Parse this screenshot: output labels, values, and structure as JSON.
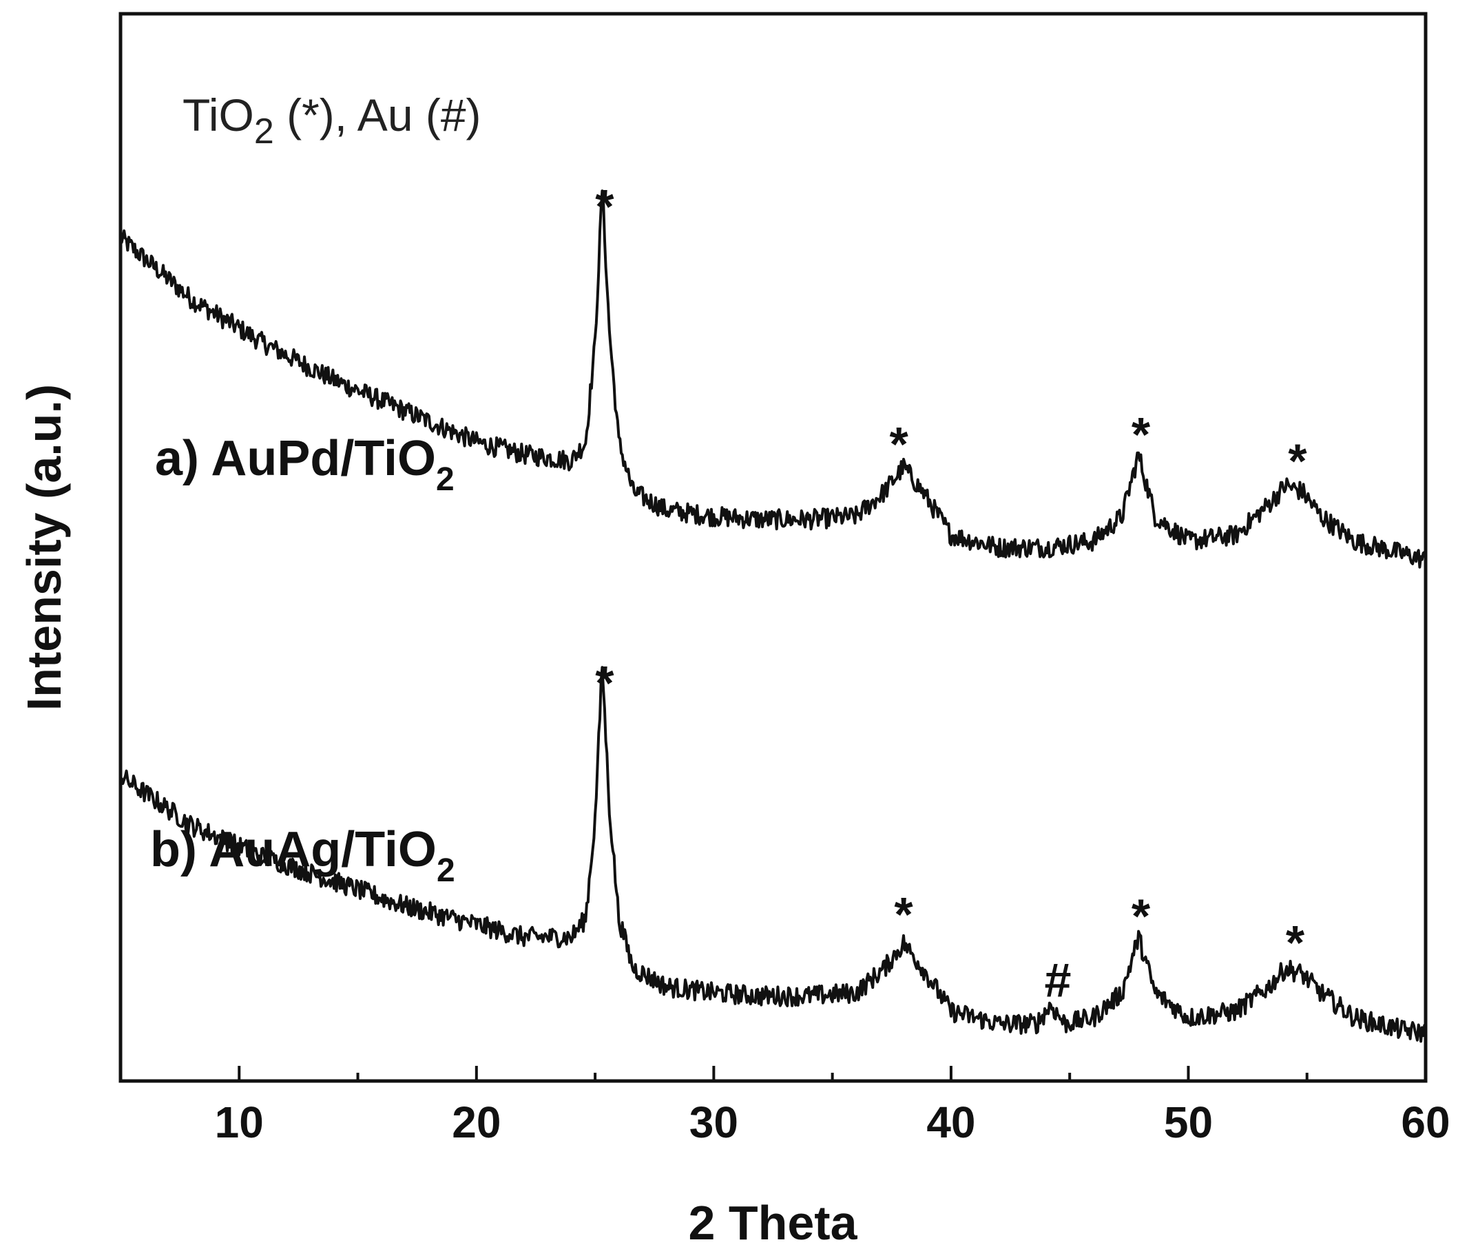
{
  "chart_data": {
    "type": "line",
    "xlabel": "2 Theta",
    "ylabel": "Intensity (a.u.)",
    "xlim": [
      5,
      60
    ],
    "x_ticks": [
      10,
      20,
      30,
      40,
      50,
      60
    ],
    "y_ticks": [],
    "grid": false,
    "legend_note": {
      "part1": "TiO",
      "sub": "2",
      "part2": " (*), Au (#)"
    },
    "series": [
      {
        "name": "a) AuPd/TiO",
        "name_sub": "2",
        "x": [
          5,
          8,
          11,
          14,
          17,
          20,
          22,
          24,
          24.6,
          25.0,
          25.3,
          25.6,
          26.0,
          26.6,
          28,
          30,
          32,
          34,
          36,
          37.2,
          38.0,
          38.8,
          40,
          42,
          44,
          46,
          47.2,
          47.9,
          48.6,
          50,
          52,
          53.4,
          54.1,
          54.8,
          55.6,
          57,
          59,
          60
        ],
        "y": [
          85,
          75,
          68,
          62,
          57,
          52,
          50,
          49,
          52,
          68,
          93,
          70,
          52,
          44,
          41,
          40,
          39.5,
          39.5,
          40,
          44,
          48,
          44,
          37,
          35,
          35,
          36,
          40,
          50,
          40,
          36,
          37,
          42,
          45,
          44,
          40,
          36,
          34,
          33
        ],
        "markers": [
          {
            "x": 25.4,
            "symbol": "*"
          },
          {
            "x": 37.8,
            "symbol": "*"
          },
          {
            "x": 48.0,
            "symbol": "*"
          },
          {
            "x": 54.6,
            "symbol": "*"
          }
        ]
      },
      {
        "name": "b) AuAg/TiO",
        "name_sub": "2",
        "x": [
          5,
          8,
          11,
          14,
          17,
          20,
          22,
          24,
          24.6,
          25.0,
          25.3,
          25.6,
          26.0,
          26.6,
          28,
          30,
          32,
          34,
          36,
          37.2,
          38.0,
          38.8,
          40,
          42,
          43.6,
          44.2,
          44.8,
          46,
          47.2,
          47.9,
          48.6,
          50,
          52,
          53.4,
          54.1,
          54.8,
          55.6,
          57,
          59,
          60
        ],
        "y": [
          62,
          54,
          49,
          45,
          41,
          38,
          36,
          36,
          39,
          55,
          80,
          57,
          39,
          31,
          28,
          27,
          26.5,
          26.5,
          27,
          31,
          35,
          31,
          24,
          22,
          22,
          25,
          22,
          23,
          27,
          36,
          27,
          23,
          24,
          28,
          31,
          30,
          27,
          23,
          21,
          20.5
        ],
        "markers": [
          {
            "x": 25.4,
            "symbol": "*"
          },
          {
            "x": 38.0,
            "symbol": "*"
          },
          {
            "x": 44.5,
            "symbol": "#"
          },
          {
            "x": 48.0,
            "symbol": "*"
          },
          {
            "x": 54.5,
            "symbol": "*"
          }
        ]
      }
    ]
  }
}
